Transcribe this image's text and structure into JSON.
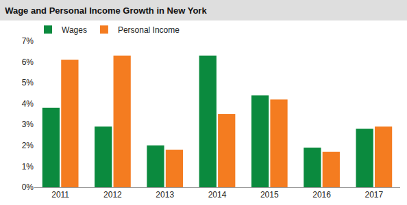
{
  "chart_data": {
    "type": "bar",
    "title": "Wage and Personal Income Growth in New York",
    "categories": [
      "2011",
      "2012",
      "2013",
      "2014",
      "2015",
      "2016",
      "2017"
    ],
    "series": [
      {
        "name": "Wages",
        "color": "#0b8a3e",
        "values": [
          3.8,
          2.9,
          2.0,
          6.3,
          4.4,
          1.9,
          2.8
        ]
      },
      {
        "name": "Personal Income",
        "color": "#f47c20",
        "values": [
          6.1,
          6.3,
          1.8,
          3.5,
          4.2,
          1.7,
          2.9
        ]
      }
    ],
    "ylim": [
      0,
      7
    ],
    "yticks": [
      {
        "value": 0,
        "label": "0%"
      },
      {
        "value": 1,
        "label": "1%"
      },
      {
        "value": 2,
        "label": "2%"
      },
      {
        "value": 3,
        "label": "3%"
      },
      {
        "value": 4,
        "label": "4%"
      },
      {
        "value": 5,
        "label": "5%"
      },
      {
        "value": 6,
        "label": "6%"
      },
      {
        "value": 7,
        "label": "7%"
      }
    ],
    "grid": false,
    "legend": "upper left"
  }
}
